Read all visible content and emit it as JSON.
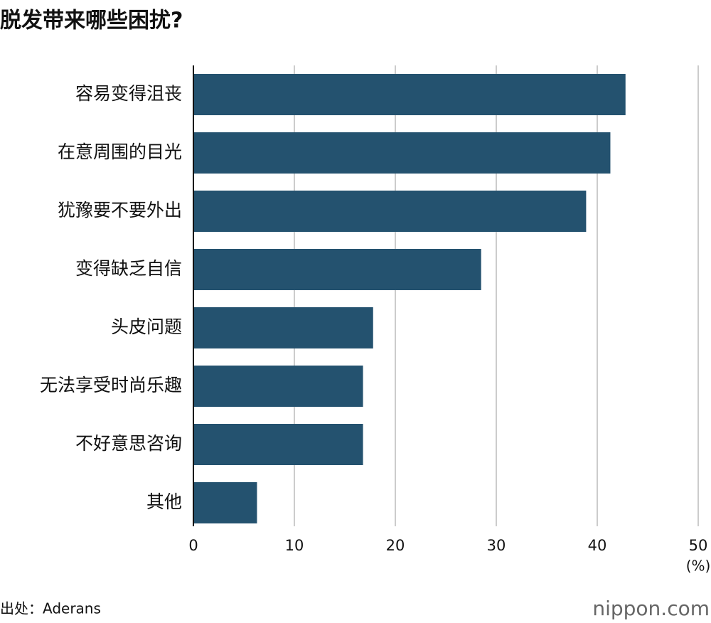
{
  "chart_data": {
    "type": "bar",
    "orientation": "horizontal",
    "title": "脱发带来哪些困扰?",
    "categories": [
      "容易变得沮丧",
      "在意周围的目光",
      "犹豫要不要外出",
      "变得缺乏自信",
      "头皮问题",
      "无法享受时尚乐趣",
      "不好意思咨询",
      "其他"
    ],
    "values": [
      42.8,
      41.3,
      38.9,
      28.5,
      17.8,
      16.8,
      16.8,
      6.3
    ],
    "color": "#24526f",
    "xlim": [
      0,
      50
    ],
    "xticks": [
      0,
      10,
      20,
      30,
      40,
      50
    ],
    "x_unit": "(%)",
    "grid": true,
    "source": "出处：Aderans",
    "logo": "nippon.com"
  }
}
